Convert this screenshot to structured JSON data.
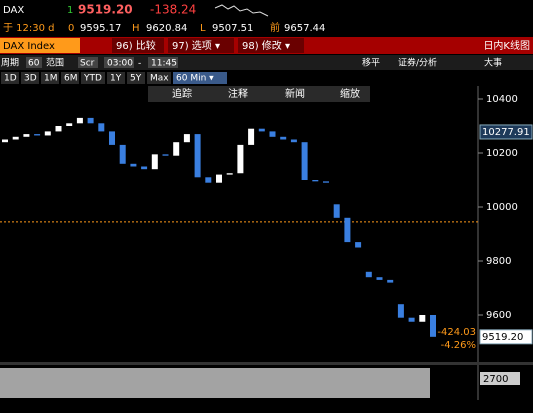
{
  "header": {
    "symbol": "DAX",
    "flag": "1",
    "last": "9519.20",
    "change": "-138.24",
    "time": "于 12:30 d",
    "open_label": "0",
    "open": "9595.17",
    "high_label": "H",
    "high": "9620.84",
    "low_label": "L",
    "low": "9507.51",
    "prev_label": "前",
    "prev": "9657.44"
  },
  "menu": {
    "security": "DAX Index",
    "items": [
      "96) 比较",
      "97) 选项 ▾",
      "98) 修改 ▾"
    ],
    "title": "日内K线图"
  },
  "settings": {
    "period_label": "周期",
    "period": "60",
    "range_label": "范围",
    "range": "Scr",
    "start": "03:00",
    "dash": "-",
    "end": "11:45",
    "move": "移平",
    "analysis": "证券/分析",
    "events": "大事"
  },
  "periods": [
    "1D",
    "3D",
    "1M",
    "6M",
    "YTD",
    "1Y",
    "5Y",
    "Max",
    "60 Min ▾"
  ],
  "tools": [
    "追踪",
    "注释",
    "新闻",
    "缩放"
  ],
  "chart_data": {
    "type": "candlestick",
    "open": [
      10240,
      10250,
      10260,
      10270,
      10265,
      10280,
      10300,
      10310,
      10330,
      10310,
      10280,
      10230,
      10160,
      10150,
      10140,
      10195,
      10190,
      10240,
      10270,
      10110,
      10090,
      10120,
      10125,
      10230,
      10290,
      10280,
      10260,
      10250,
      10240,
      10100,
      10095,
      10010,
      9960,
      9870,
      9760,
      9740,
      9730,
      9640,
      9590,
      9575,
      9600
    ],
    "close": [
      10250,
      10260,
      10270,
      10265,
      10280,
      10300,
      10310,
      10330,
      10310,
      10280,
      10230,
      10160,
      10150,
      10140,
      10195,
      10190,
      10240,
      10270,
      10110,
      10090,
      10120,
      10125,
      10230,
      10290,
      10280,
      10260,
      10250,
      10240,
      10100,
      10095,
      10090,
      9960,
      9870,
      9850,
      9740,
      9730,
      9720,
      9590,
      9575,
      9600,
      9519.2
    ],
    "up_color": "#ffffff",
    "down_color": "#3a7fe0",
    "ylim": [
      9450,
      10450
    ],
    "yticks": [
      9600,
      9800,
      10000,
      10200,
      10400
    ],
    "ref_line": 9945,
    "ref_color": "#ff9a1a",
    "price_tags": [
      {
        "value": 10277.91,
        "label": "10277.91"
      },
      {
        "value": 9519.2,
        "label": "9519.20"
      }
    ],
    "change_labels": [
      "-424.03",
      "-4.26%"
    ],
    "volume_label": "2700"
  }
}
